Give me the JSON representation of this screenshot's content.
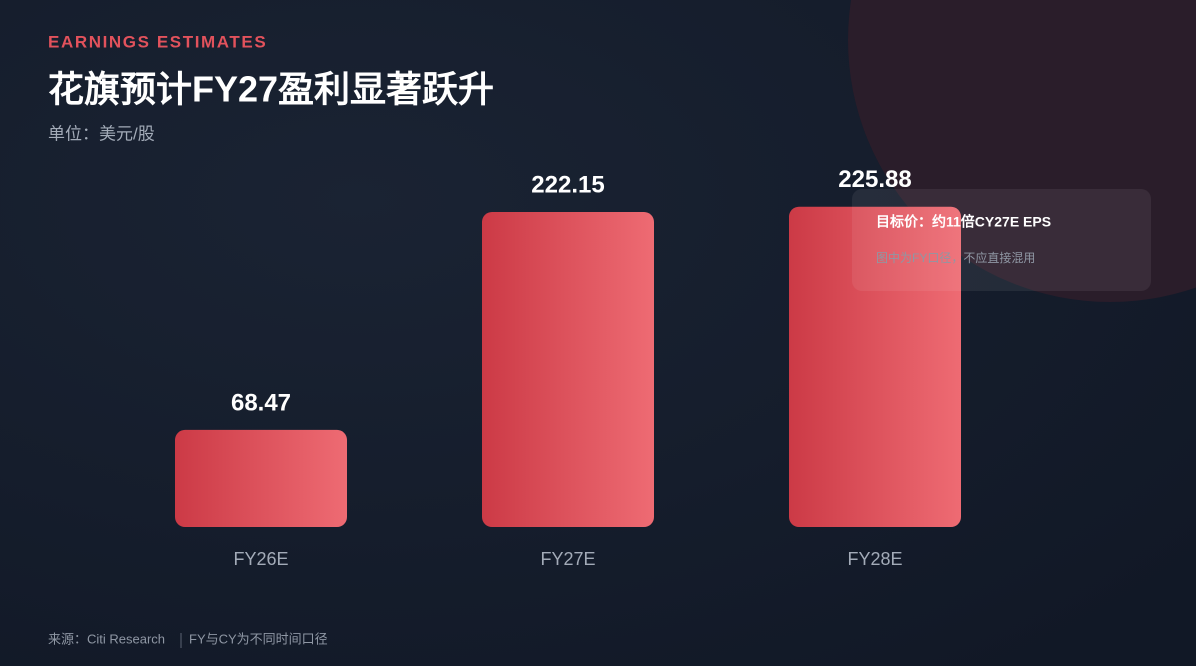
{
  "header": {
    "kicker": "EARNINGS ESTIMATES",
    "title": "花旗预计FY27盈利显著跃升",
    "subtitle": "单位：美元/股"
  },
  "chart_data": {
    "type": "bar",
    "categories": [
      "FY26E",
      "FY27E",
      "FY28E"
    ],
    "values": [
      68.47,
      222.15,
      225.88
    ],
    "gradient": [
      "#cc3a46",
      "#ee6b73"
    ]
  },
  "callout": {
    "title": "目标价：约11倍CY27E EPS",
    "note": "图中为FY口径，不应直接混用"
  },
  "footer": {
    "source": "来源：Citi Research",
    "note": "FY与CY为不同时间口径"
  }
}
